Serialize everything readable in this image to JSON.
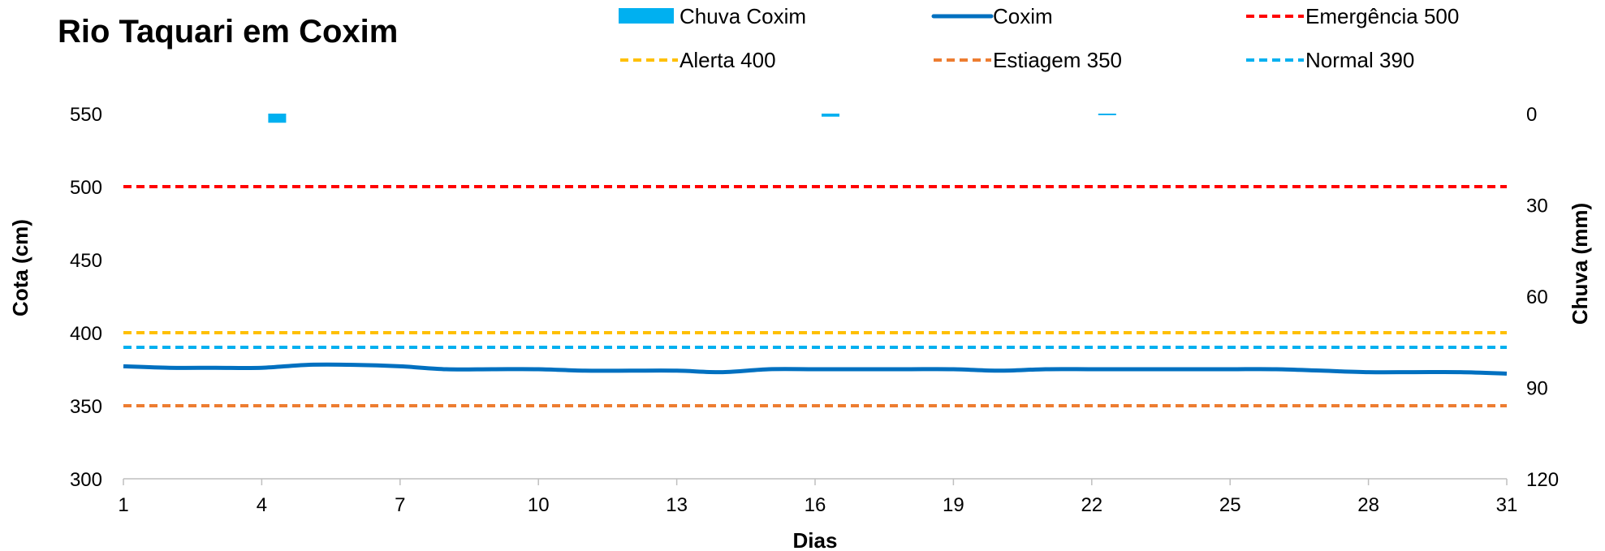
{
  "chart_data": {
    "type": "line",
    "title": "Rio Taquari em Coxim",
    "xlabel": "Dias",
    "ylabel_left": "Cota   (cm)",
    "ylabel_right": "Chuva (mm)",
    "x": [
      1,
      2,
      3,
      4,
      5,
      6,
      7,
      8,
      9,
      10,
      11,
      12,
      13,
      14,
      15,
      16,
      17,
      18,
      19,
      20,
      21,
      22,
      23,
      24,
      25,
      26,
      27,
      28,
      29,
      30,
      31
    ],
    "x_ticks": [
      1,
      4,
      7,
      10,
      13,
      16,
      19,
      22,
      25,
      28,
      31
    ],
    "x_tick_labels": [
      "1",
      "4",
      "7",
      "10",
      "13",
      "16",
      "19",
      "22",
      "25",
      "28",
      "31"
    ],
    "ylim_left": [
      300,
      550
    ],
    "y_ticks_left": [
      300,
      350,
      400,
      450,
      500,
      550
    ],
    "y_tick_labels_left": [
      "300",
      "350",
      "400",
      "450",
      "500",
      "550"
    ],
    "ylim_right": [
      0,
      120
    ],
    "y_right_inverted": true,
    "y_ticks_right": [
      0,
      30,
      60,
      90,
      120
    ],
    "y_tick_labels_right": [
      "0",
      "30",
      "60",
      "90",
      "120"
    ],
    "series": [
      {
        "name": "Chuva Coxim",
        "kind": "bar",
        "axis": "right",
        "color": "#00B0F0",
        "values": [
          0,
          0,
          0,
          3,
          0,
          0,
          0,
          0,
          0,
          0,
          0,
          0,
          0,
          0,
          0,
          1,
          0,
          0,
          0,
          0,
          0,
          0.3,
          0,
          0,
          0,
          0,
          0,
          0,
          0,
          0,
          0
        ]
      },
      {
        "name": "Coxim",
        "kind": "line",
        "axis": "left",
        "color": "#0070C0",
        "values": [
          377,
          376,
          376,
          376,
          378,
          378,
          377,
          375,
          375,
          375,
          374,
          374,
          374,
          373,
          375,
          375,
          375,
          375,
          375,
          374,
          375,
          375,
          375,
          375,
          375,
          375,
          374,
          373,
          373,
          373,
          372
        ]
      },
      {
        "name": "Emergência 500",
        "kind": "threshold",
        "axis": "left",
        "color": "#FF0000",
        "value": 500
      },
      {
        "name": "Alerta 400",
        "kind": "threshold",
        "axis": "left",
        "color": "#FFC000",
        "value": 400
      },
      {
        "name": "Estiagem 350",
        "kind": "threshold",
        "axis": "left",
        "color": "#ED7D31",
        "value": 350
      },
      {
        "name": "Normal  390",
        "kind": "threshold",
        "axis": "left",
        "color": "#00B0F0",
        "value": 390
      }
    ],
    "legend_placement": "top",
    "grid": false
  }
}
